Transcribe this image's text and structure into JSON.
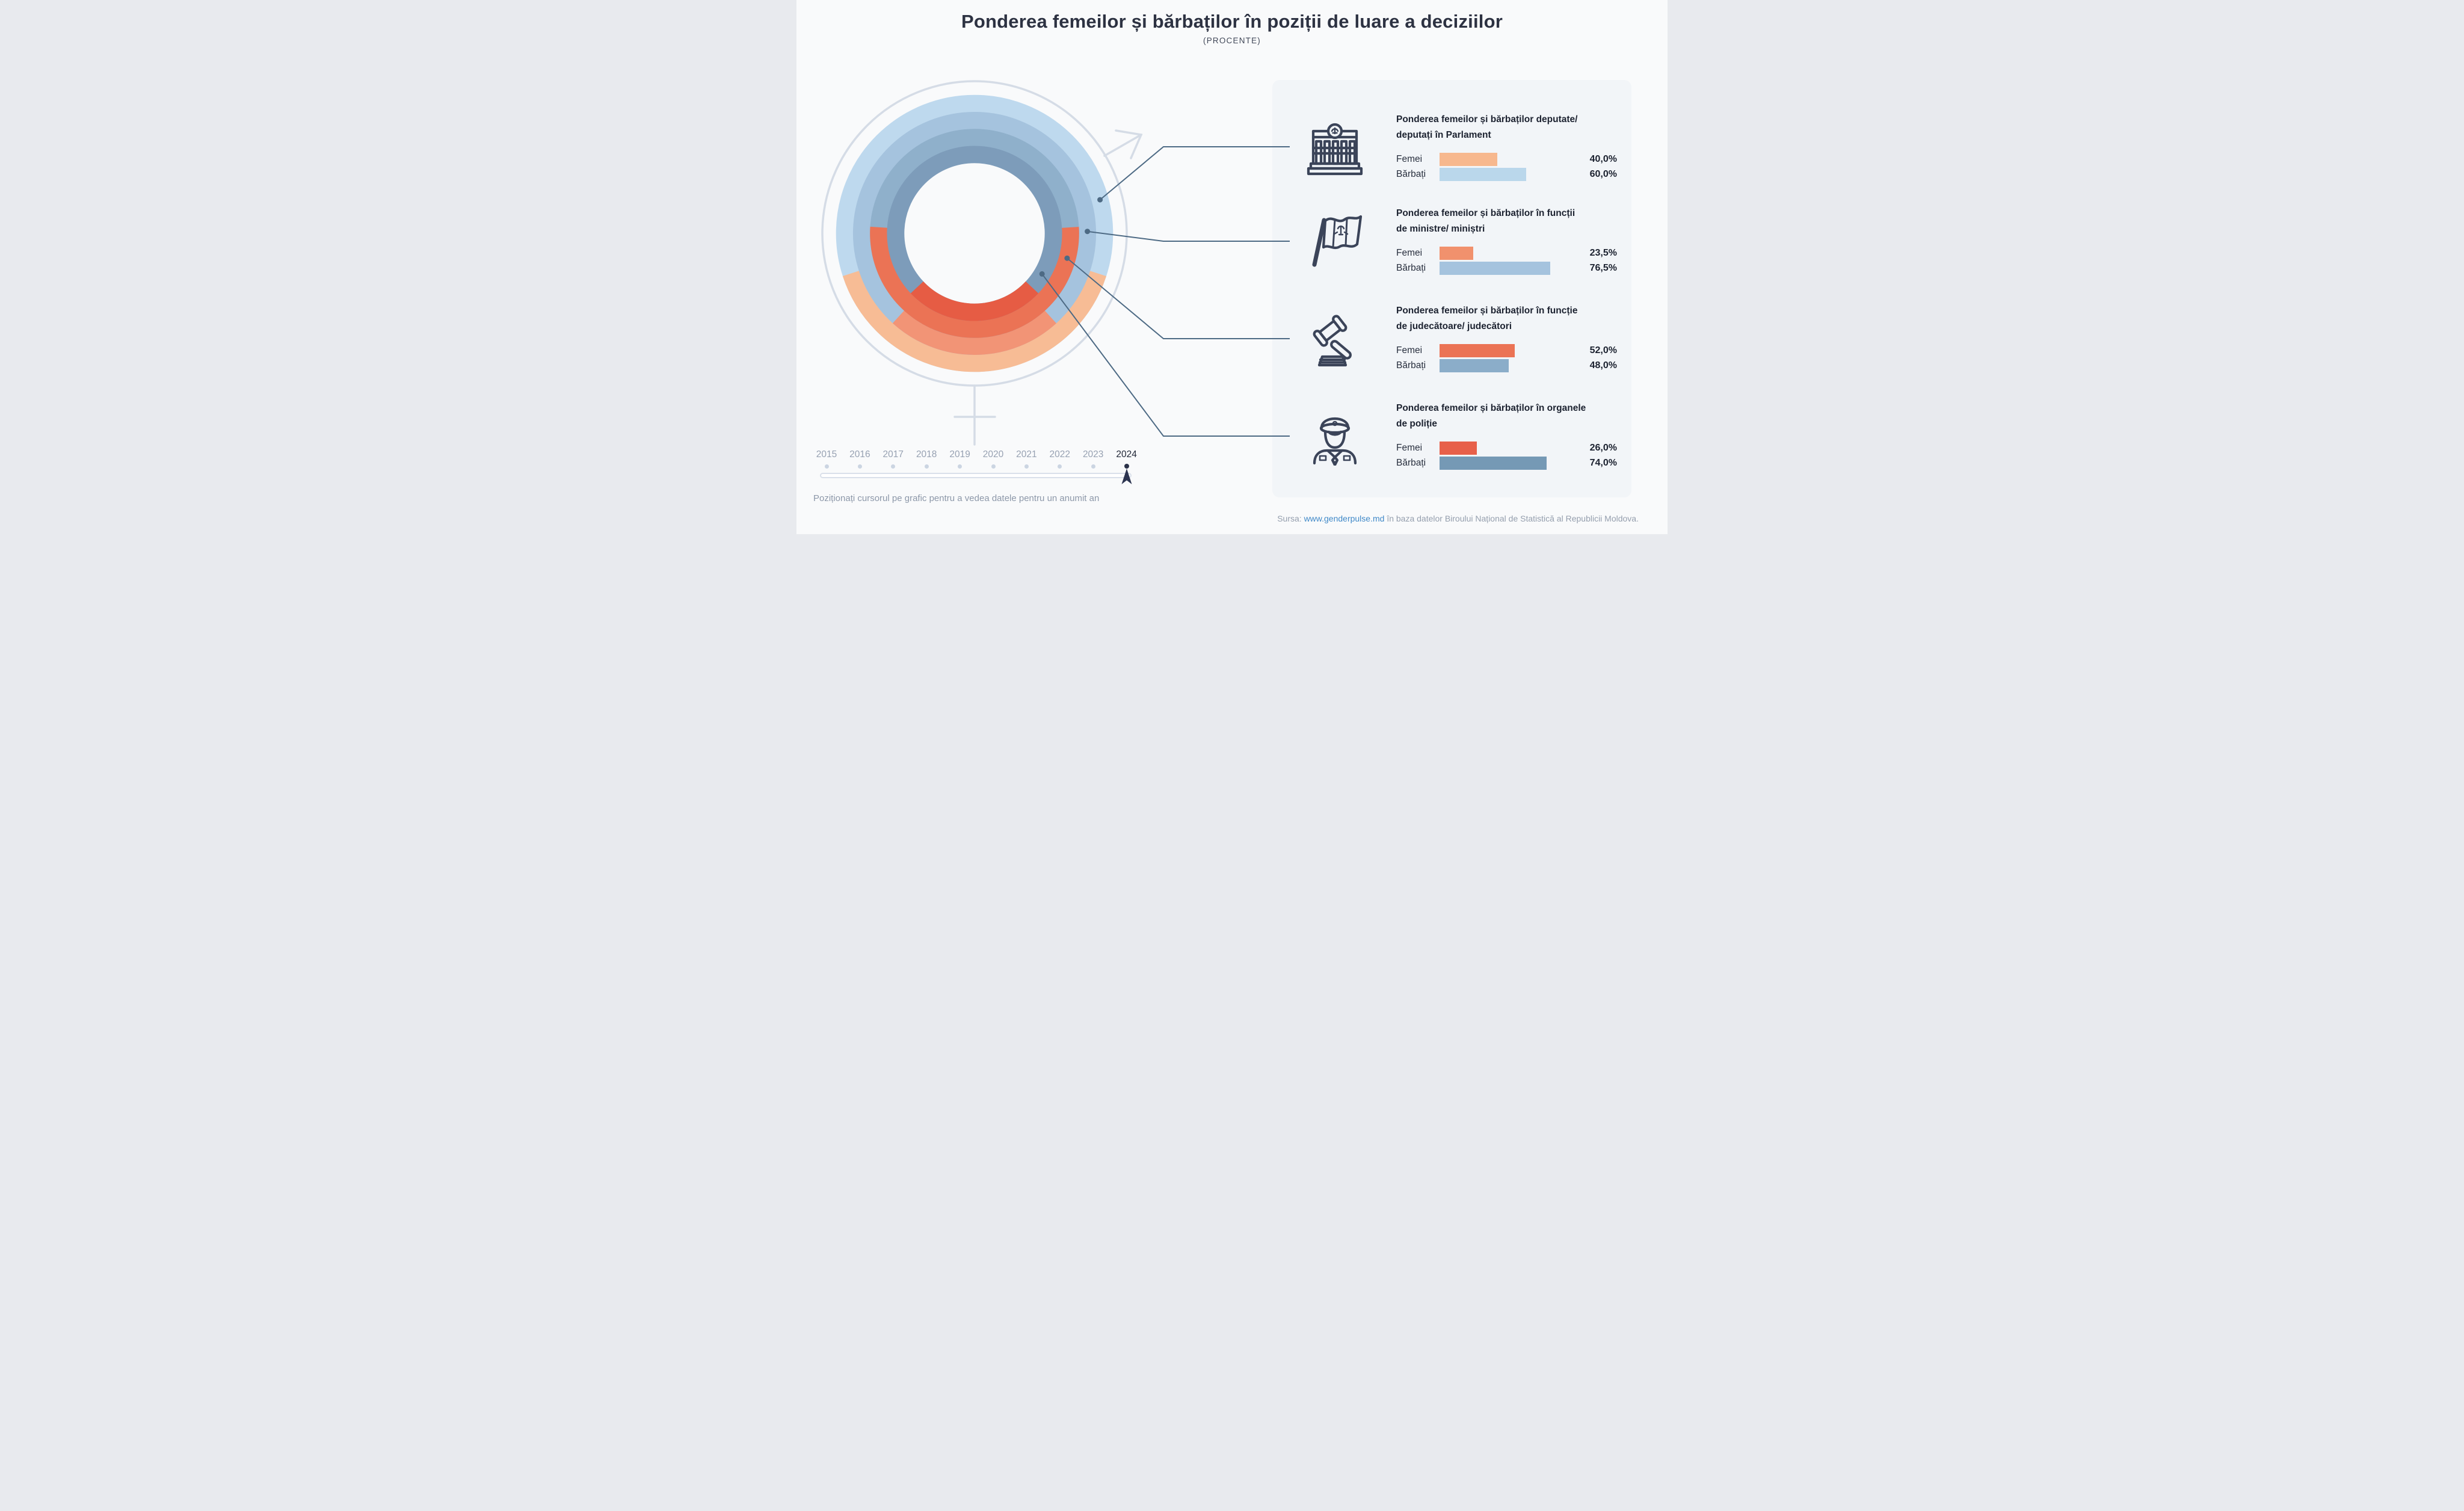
{
  "header": {
    "title": "Ponderea femeilor și bărbaților în poziții de luare a deciziilor",
    "subtitle": "(PROCENTE)"
  },
  "chart_data": {
    "type": "donut",
    "title": "Ponderea femeilor și bărbaților în poziții de luare a deciziilor",
    "unit": "PROCENTE",
    "year": "2024",
    "series_labels": [
      "Femei",
      "Bărbați"
    ],
    "rings_order_outer_to_inner": [
      {
        "category": "Deputate/deputați în Parlament",
        "femei_pct": 40.0,
        "barbati_pct": 60.0,
        "femei_color": "#f7bc95",
        "barbati_color": "#bed9ee"
      },
      {
        "category": "Ministre/miniștri",
        "femei_pct": 23.5,
        "barbati_pct": 76.5,
        "femei_color": "#f29476",
        "barbati_color": "#a5c3de"
      },
      {
        "category": "Judecătoare/judecători",
        "femei_pct": 52.0,
        "barbati_pct": 48.0,
        "femei_color": "#eb7355",
        "barbati_color": "#8fb0cb"
      },
      {
        "category": "Organele de poliție",
        "femei_pct": 26.0,
        "barbati_pct": 74.0,
        "femei_color": "#e65c44",
        "barbati_color": "#7d9cba"
      }
    ]
  },
  "panel": {
    "sections": [
      {
        "icon": "parliament-building-icon",
        "title_line1": "Ponderea femeilor și bărbaților deputate/",
        "title_line2": "deputați în Parlament",
        "rows": [
          {
            "label": "Femei",
            "pct": 40.0,
            "value_label": "40,0%",
            "color": "#f7b88e"
          },
          {
            "label": "Bărbați",
            "pct": 60.0,
            "value_label": "60,0%",
            "color": "#bad7eb"
          }
        ]
      },
      {
        "icon": "flag-icon",
        "title_line1": "Ponderea femeilor și bărbaților în funcții",
        "title_line2": "de ministre/ miniștri",
        "rows": [
          {
            "label": "Femei",
            "pct": 23.5,
            "value_label": "23,5%",
            "color": "#f1916d"
          },
          {
            "label": "Bărbați",
            "pct": 76.5,
            "value_label": "76,5%",
            "color": "#a5c3de"
          }
        ]
      },
      {
        "icon": "gavel-icon",
        "title_line1": "Ponderea femeilor și bărbaților în funcție",
        "title_line2": "de judecătoare/ judecători",
        "rows": [
          {
            "label": "Femei",
            "pct": 52.0,
            "value_label": "52,0%",
            "color": "#eb7355"
          },
          {
            "label": "Bărbați",
            "pct": 48.0,
            "value_label": "48,0%",
            "color": "#8badc9"
          }
        ]
      },
      {
        "icon": "police-officer-icon",
        "title_line1": "Ponderea femeilor și bărbaților în organele",
        "title_line2": "de poliție",
        "rows": [
          {
            "label": "Femei",
            "pct": 26.0,
            "value_label": "26,0%",
            "color": "#e7604a"
          },
          {
            "label": "Bărbați",
            "pct": 74.0,
            "value_label": "74,0%",
            "color": "#7599b5"
          }
        ]
      }
    ]
  },
  "timeline": {
    "years": [
      "2015",
      "2016",
      "2017",
      "2018",
      "2019",
      "2020",
      "2021",
      "2022",
      "2023",
      "2024"
    ],
    "active_year": "2024",
    "instruction": "Poziționați cursorul pe grafic pentru a vedea datele pentru un anumit an"
  },
  "footer": {
    "prefix": "Sursa:",
    "link": "www.genderpulse.md",
    "suffix": "în baza datelor Biroului Național de Statistică al Republicii Moldova."
  }
}
